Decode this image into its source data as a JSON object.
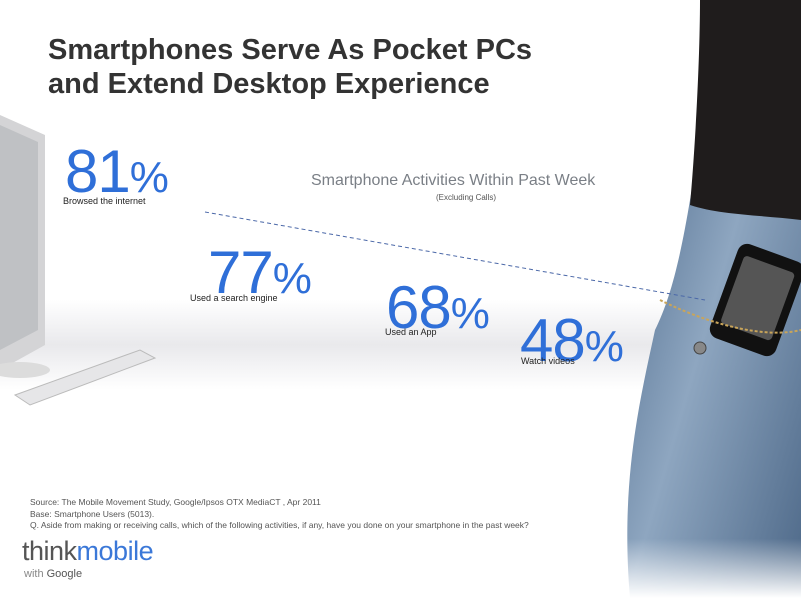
{
  "header": {
    "title_lines": [
      "Smartphones Serve As Pocket PCs",
      "and Extend Desktop Experience"
    ]
  },
  "section": {
    "title": "Smartphone Activities Within Past Week",
    "note": "(Excluding Calls)"
  },
  "stats": [
    {
      "value": 81,
      "unit": "%",
      "label": "Browsed the internet"
    },
    {
      "value": 77,
      "unit": "%",
      "label": "Used a search engine"
    },
    {
      "value": 68,
      "unit": "%",
      "label": "Used an App"
    },
    {
      "value": 48,
      "unit": "%",
      "label": "Watch videos"
    }
  ],
  "footer": {
    "lines": [
      "Source: The Mobile Movement Study, Google/Ipsos OTX MediaCT , Apr 2011",
      "Base:   Smartphone Users (5013).",
      "Q.  Aside from making or receiving calls, which of the following activities, if any, have you done on your smartphone in the past week?"
    ]
  },
  "logo": {
    "think": "think",
    "mobile": "mobile",
    "with": "with",
    "google": "Google"
  }
}
